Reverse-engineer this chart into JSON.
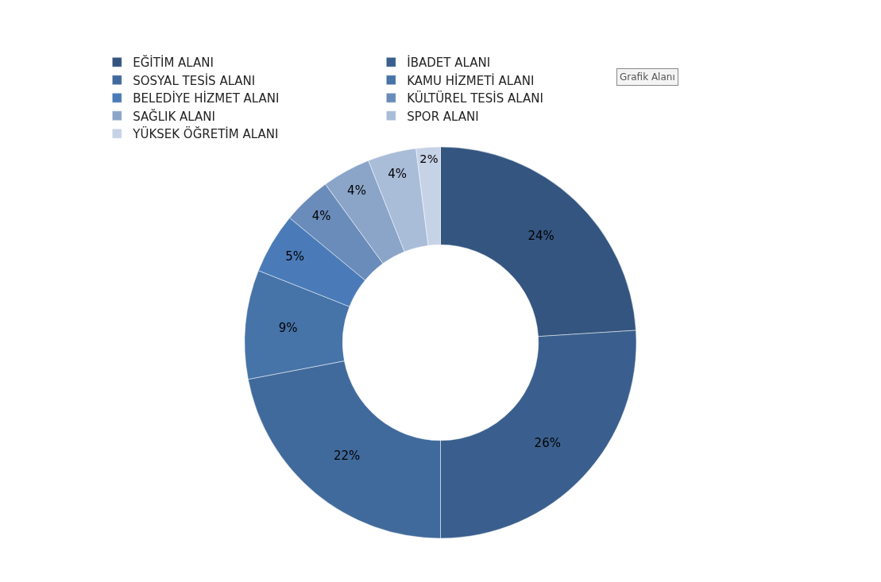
{
  "chart_data": {
    "type": "donut",
    "categories": [
      "EĞİTİM ALANI",
      "İBADET ALANI",
      "SOSYAL TESİS ALANI",
      "KAMU HİZMETİ ALANI",
      "BELEDİYE HİZMET ALANI",
      "KÜLTÜREL TESİS ALANI",
      "SAĞLIK ALANI",
      "SPOR ALANI",
      "YÜKSEK ÖĞRETİM ALANI"
    ],
    "values": [
      24,
      26,
      22,
      9,
      5,
      4,
      4,
      4,
      2
    ],
    "value_labels": [
      "24%",
      "26%",
      "22%",
      "9%",
      "5%",
      "4%",
      "4%",
      "4%",
      "2%"
    ],
    "colors": [
      "#34557f",
      "#3a5f8e",
      "#416a9c",
      "#4673a8",
      "#4a7bb8",
      "#6a8cba",
      "#8ba5c9",
      "#a9bcd8",
      "#c6d2e6"
    ],
    "legend": "top",
    "annotations": [
      "Grafik Alanı"
    ]
  }
}
